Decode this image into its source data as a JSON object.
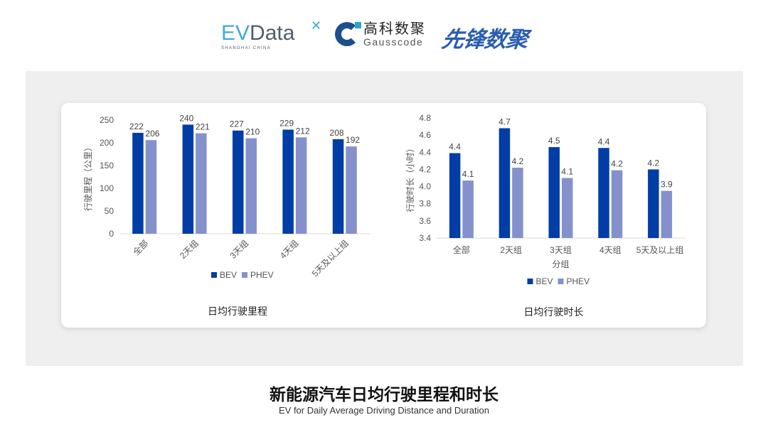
{
  "logos": {
    "evdata": {
      "ev": "EV",
      "data": "Data",
      "sub": "SHANGHAI CHINA"
    },
    "gausscode": {
      "cn": "高科数聚",
      "en": "Gausscode"
    },
    "xianfeng": "先锋数聚"
  },
  "colors": {
    "bev": "#003da5",
    "phev": "#8591cc",
    "panel": "#efefef"
  },
  "chart_data": [
    {
      "type": "bar",
      "title": "日均行驶里程",
      "xlabel": "",
      "ylabel": "行驶里程（公里）",
      "ylim": [
        0,
        250
      ],
      "yticks": [
        "0",
        "50",
        "100",
        "150",
        "200",
        "250"
      ],
      "categories": [
        "全部",
        "2天组",
        "3天组",
        "4天组",
        "5天及以上组"
      ],
      "series": [
        {
          "name": "BEV",
          "values": [
            222,
            240,
            227,
            229,
            208
          ],
          "labels": [
            "222",
            "240",
            "227",
            "229",
            "208"
          ]
        },
        {
          "name": "PHEV",
          "values": [
            206,
            221,
            210,
            212,
            192
          ],
          "labels": [
            "206",
            "221",
            "210",
            "212",
            "192"
          ]
        }
      ],
      "grid": false,
      "legend": "bottom"
    },
    {
      "type": "bar",
      "title": "日均行驶时长",
      "xlabel": "分组",
      "ylabel": "行驶时长（小时）",
      "ylim": [
        3.4,
        4.8
      ],
      "yticks": [
        "3.4",
        "3.6",
        "3.8",
        "4.0",
        "4.2",
        "4.4",
        "4.6",
        "4.8"
      ],
      "categories": [
        "全部",
        "2天组",
        "3天组",
        "4天组",
        "5天及以上组"
      ],
      "series": [
        {
          "name": "BEV",
          "values": [
            4.39,
            4.68,
            4.46,
            4.45,
            4.2
          ],
          "labels": [
            "4.4",
            "4.7",
            "4.5",
            "4.4",
            "4.2"
          ]
        },
        {
          "name": "PHEV",
          "values": [
            4.07,
            4.22,
            4.1,
            4.19,
            3.95
          ],
          "labels": [
            "4.1",
            "4.2",
            "4.1",
            "4.2",
            "3.9"
          ]
        }
      ],
      "grid": false,
      "legend": "bottom"
    }
  ],
  "footer": {
    "title": "新能源汽车日均行驶里程和时长",
    "subtitle": "EV for Daily Average Driving Distance and Duration"
  }
}
